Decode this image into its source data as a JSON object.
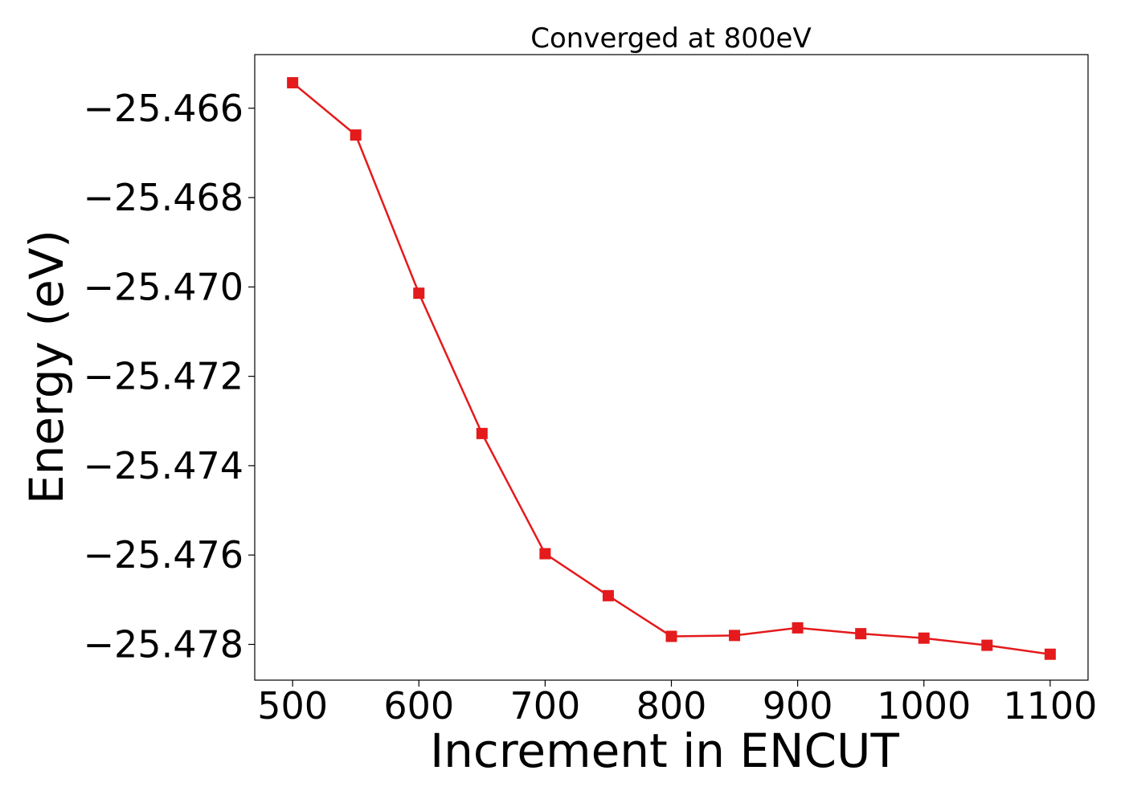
{
  "chart_data": {
    "type": "line",
    "title": "Converged at 800eV",
    "xlabel": "Increment in ENCUT",
    "ylabel": "Energy (eV)",
    "xlim": [
      470,
      1130
    ],
    "ylim": [
      -25.4788,
      -25.4648
    ],
    "xticks": [
      500,
      600,
      700,
      800,
      900,
      1000,
      1100
    ],
    "xtick_labels": [
      "500",
      "600",
      "700",
      "800",
      "900",
      "1000",
      "1100"
    ],
    "yticks": [
      -25.466,
      -25.468,
      -25.47,
      -25.472,
      -25.474,
      -25.476,
      -25.478
    ],
    "ytick_labels": [
      "−25.466",
      "−25.468",
      "−25.470",
      "−25.472",
      "−25.474",
      "−25.476",
      "−25.478"
    ],
    "grid": false,
    "series": [
      {
        "color": "#e41a1c",
        "marker": "square",
        "x": [
          500,
          550,
          600,
          650,
          700,
          750,
          800,
          850,
          900,
          950,
          1000,
          1050,
          1100
        ],
        "y": [
          -25.46543,
          -25.4666,
          -25.47014,
          -25.47328,
          -25.47597,
          -25.47691,
          -25.47782,
          -25.4778,
          -25.47763,
          -25.47776,
          -25.47786,
          -25.47802,
          -25.47822
        ]
      }
    ]
  }
}
